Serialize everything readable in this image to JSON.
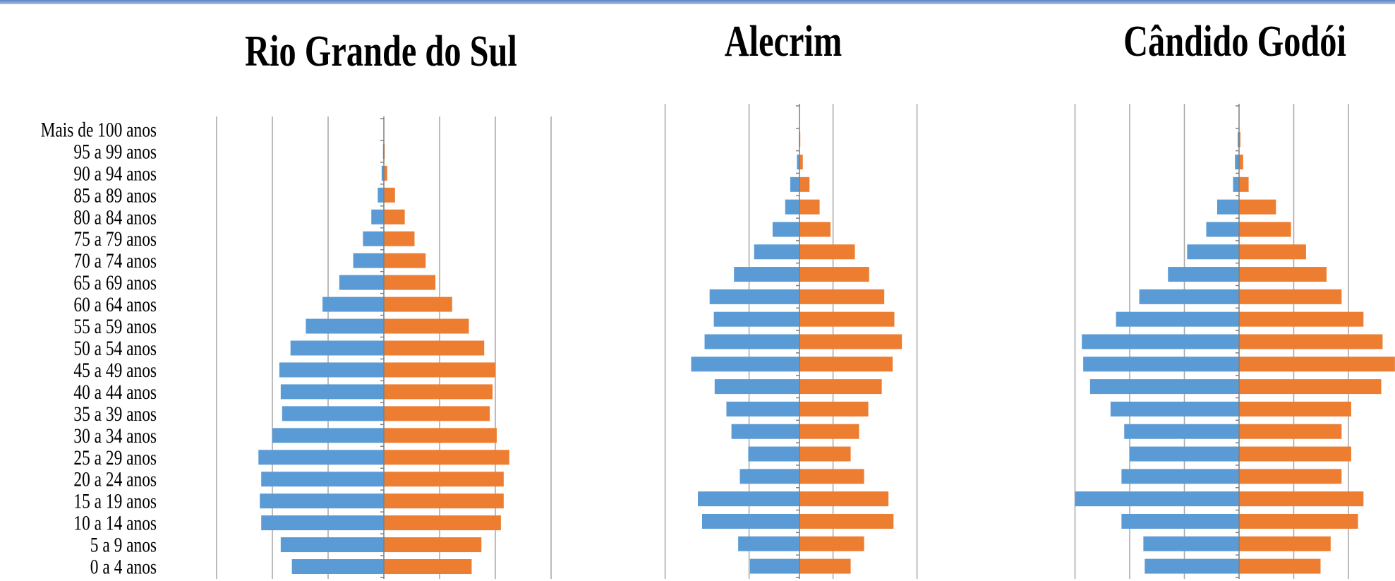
{
  "colors": {
    "male": "#5b9bd5",
    "female": "#ed7d31",
    "grid": "#a6a6a6",
    "axis": "#7f7f7f"
  },
  "chart_data": [
    {
      "type": "bar",
      "orientation": "horizontal",
      "title": "Rio Grande do Sul",
      "categories": [
        "0 a 4 anos",
        "5 a 9 anos",
        "10 a 14 anos",
        "15 a 19 anos",
        "20 a 24 anos",
        "25 a 29 anos",
        "30 a 34 anos",
        "35 a 39 anos",
        "40 a 44 anos",
        "45 a 49 anos",
        "50 a 54 anos",
        "55 a 59 anos",
        "60 a 64 anos",
        "65 a 69 anos",
        "70 a 74 anos",
        "75 a 79 anos",
        "80 a 84 anos",
        "85 a 89 anos",
        "90 a 94 anos",
        "95 a 99 anos",
        "Mais de 100 anos"
      ],
      "series": [
        {
          "values": [
            -3.3,
            -3.7,
            -4.4,
            -4.45,
            -4.4,
            -4.5,
            -4.0,
            -3.65,
            -3.7,
            -3.75,
            -3.35,
            -2.8,
            -2.2,
            -1.6,
            -1.1,
            -0.75,
            -0.45,
            -0.22,
            -0.08,
            -0.03,
            -0.01
          ]
        },
        {
          "values": [
            3.15,
            3.5,
            4.2,
            4.3,
            4.3,
            4.5,
            4.05,
            3.8,
            3.9,
            4.0,
            3.6,
            3.05,
            2.45,
            1.85,
            1.5,
            1.1,
            0.75,
            0.4,
            0.12,
            0.03,
            0.01
          ]
        }
      ],
      "xlim": [
        -6,
        6
      ],
      "grid": true
    },
    {
      "type": "bar",
      "orientation": "horizontal",
      "title": "Alecrim",
      "categories": [
        "0 a 4 anos",
        "5 a 9 anos",
        "10 a 14 anos",
        "15 a 19 anos",
        "20 a 24 anos",
        "25 a 29 anos",
        "30 a 34 anos",
        "35 a 39 anos",
        "40 a 44 anos",
        "45 a 49 anos",
        "50 a 54 anos",
        "55 a 59 anos",
        "60 a 64 anos",
        "65 a 69 anos",
        "70 a 74 anos",
        "75 a 79 anos",
        "80 a 84 anos",
        "85 a 89 anos",
        "90 a 94 anos",
        "95 a 99 anos",
        "Mais de 100 anos"
      ],
      "series": [
        {
          "values": [
            -2.95,
            -3.65,
            -5.8,
            -6.05,
            -3.55,
            -3.05,
            -4.05,
            -4.35,
            -5.05,
            -6.45,
            -5.65,
            -5.1,
            -5.35,
            -3.9,
            -2.7,
            -1.6,
            -0.85,
            -0.55,
            -0.15,
            -0.03,
            -0.01
          ]
        },
        {
          "values": [
            3.05,
            3.85,
            5.6,
            5.3,
            3.85,
            3.05,
            3.55,
            4.1,
            4.9,
            5.55,
            6.1,
            5.65,
            5.05,
            4.15,
            3.3,
            1.85,
            1.2,
            0.6,
            0.2,
            0.05,
            0.01
          ]
        }
      ],
      "xlim": [
        -8,
        8
      ],
      "grid": true
    },
    {
      "type": "bar",
      "orientation": "horizontal",
      "title": "Cândido Godói",
      "categories": [
        "0 a 4 anos",
        "5 a 9 anos",
        "10 a 14 anos",
        "15 a 19 anos",
        "20 a 24 anos",
        "25 a 29 anos",
        "30 a 34 anos",
        "35 a 39 anos",
        "40 a 44 anos",
        "45 a 49 anos",
        "50 a 54 anos",
        "55 a 59 anos",
        "60 a 64 anos",
        "65 a 69 anos",
        "70 a 74 anos",
        "75 a 79 anos",
        "80 a 84 anos",
        "85 a 89 anos",
        "90 a 94 anos",
        "95 a 99 anos",
        "Mais de 100 anos"
      ],
      "series": [
        {
          "values": [
            -3.45,
            -3.5,
            -4.3,
            -6.0,
            -4.3,
            -4.0,
            -4.2,
            -4.7,
            -5.45,
            -5.7,
            -5.75,
            -4.5,
            -3.65,
            -2.6,
            -1.9,
            -1.2,
            -0.8,
            -0.22,
            -0.15,
            -0.05,
            -0.01
          ]
        },
        {
          "values": [
            2.98,
            3.35,
            4.35,
            4.55,
            3.75,
            4.1,
            3.75,
            4.1,
            5.2,
            5.7,
            5.25,
            4.55,
            3.75,
            3.2,
            2.45,
            1.9,
            1.35,
            0.35,
            0.15,
            0.05,
            0.01
          ]
        }
      ],
      "xlim": [
        -6,
        6
      ],
      "grid": true
    }
  ]
}
